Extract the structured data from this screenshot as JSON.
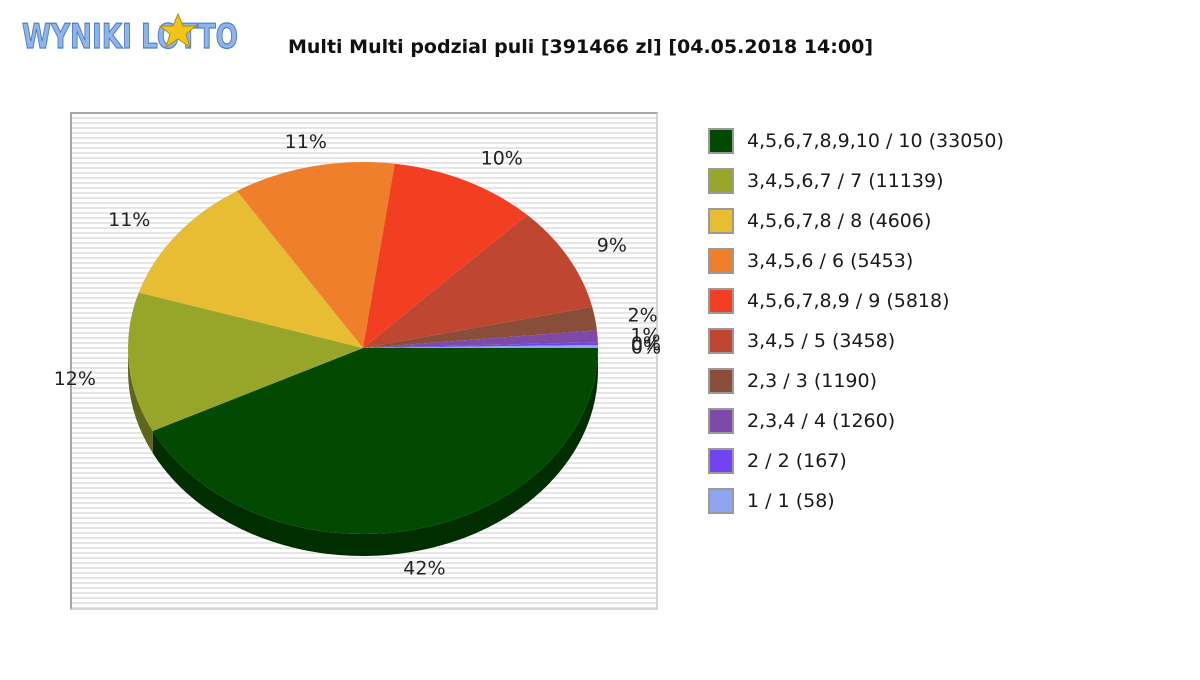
{
  "logo": {
    "text": "WYNIKI LOTTO"
  },
  "header": {
    "title": "Multi Multi podzial puli [391466 zl] [04.05.2018 14:00]"
  },
  "chart_data": {
    "type": "pie",
    "title": "Multi Multi podzial puli [391466 zl] [04.05.2018 14:00]",
    "legend_position": "right",
    "slices": [
      {
        "label": "4,5,6,7,8,9,10 / 10 (33050)",
        "value": 42,
        "pct_label": "42%",
        "color": "#024a02"
      },
      {
        "label": "3,4,5,6,7 / 7 (11139)",
        "value": 12,
        "pct_label": "12%",
        "color": "#97a528"
      },
      {
        "label": "4,5,6,7,8 / 8 (4606)",
        "value": 11,
        "pct_label": "11%",
        "color": "#e9bd33"
      },
      {
        "label": "3,4,5,6 / 6 (5453)",
        "value": 11,
        "pct_label": "11%",
        "color": "#ef7f2b"
      },
      {
        "label": "4,5,6,7,8,9 / 9 (5818)",
        "value": 10,
        "pct_label": "10%",
        "color": "#f23f22"
      },
      {
        "label": "3,4,5 / 5 (3458)",
        "value": 9,
        "pct_label": "9%",
        "color": "#bf4630"
      },
      {
        "label": "2,3 / 3 (1190)",
        "value": 2,
        "pct_label": "2%",
        "color": "#8a4d3a"
      },
      {
        "label": "2,3,4 / 4 (1260)",
        "value": 1,
        "pct_label": "1%",
        "color": "#7e4aa8"
      },
      {
        "label": "2 / 2 (167)",
        "value": 0,
        "pct_label": "0%",
        "color": "#7243f2"
      },
      {
        "label": "1 / 1 (58)",
        "value": 0,
        "pct_label": "0%",
        "color": "#8ea5f0"
      }
    ]
  }
}
